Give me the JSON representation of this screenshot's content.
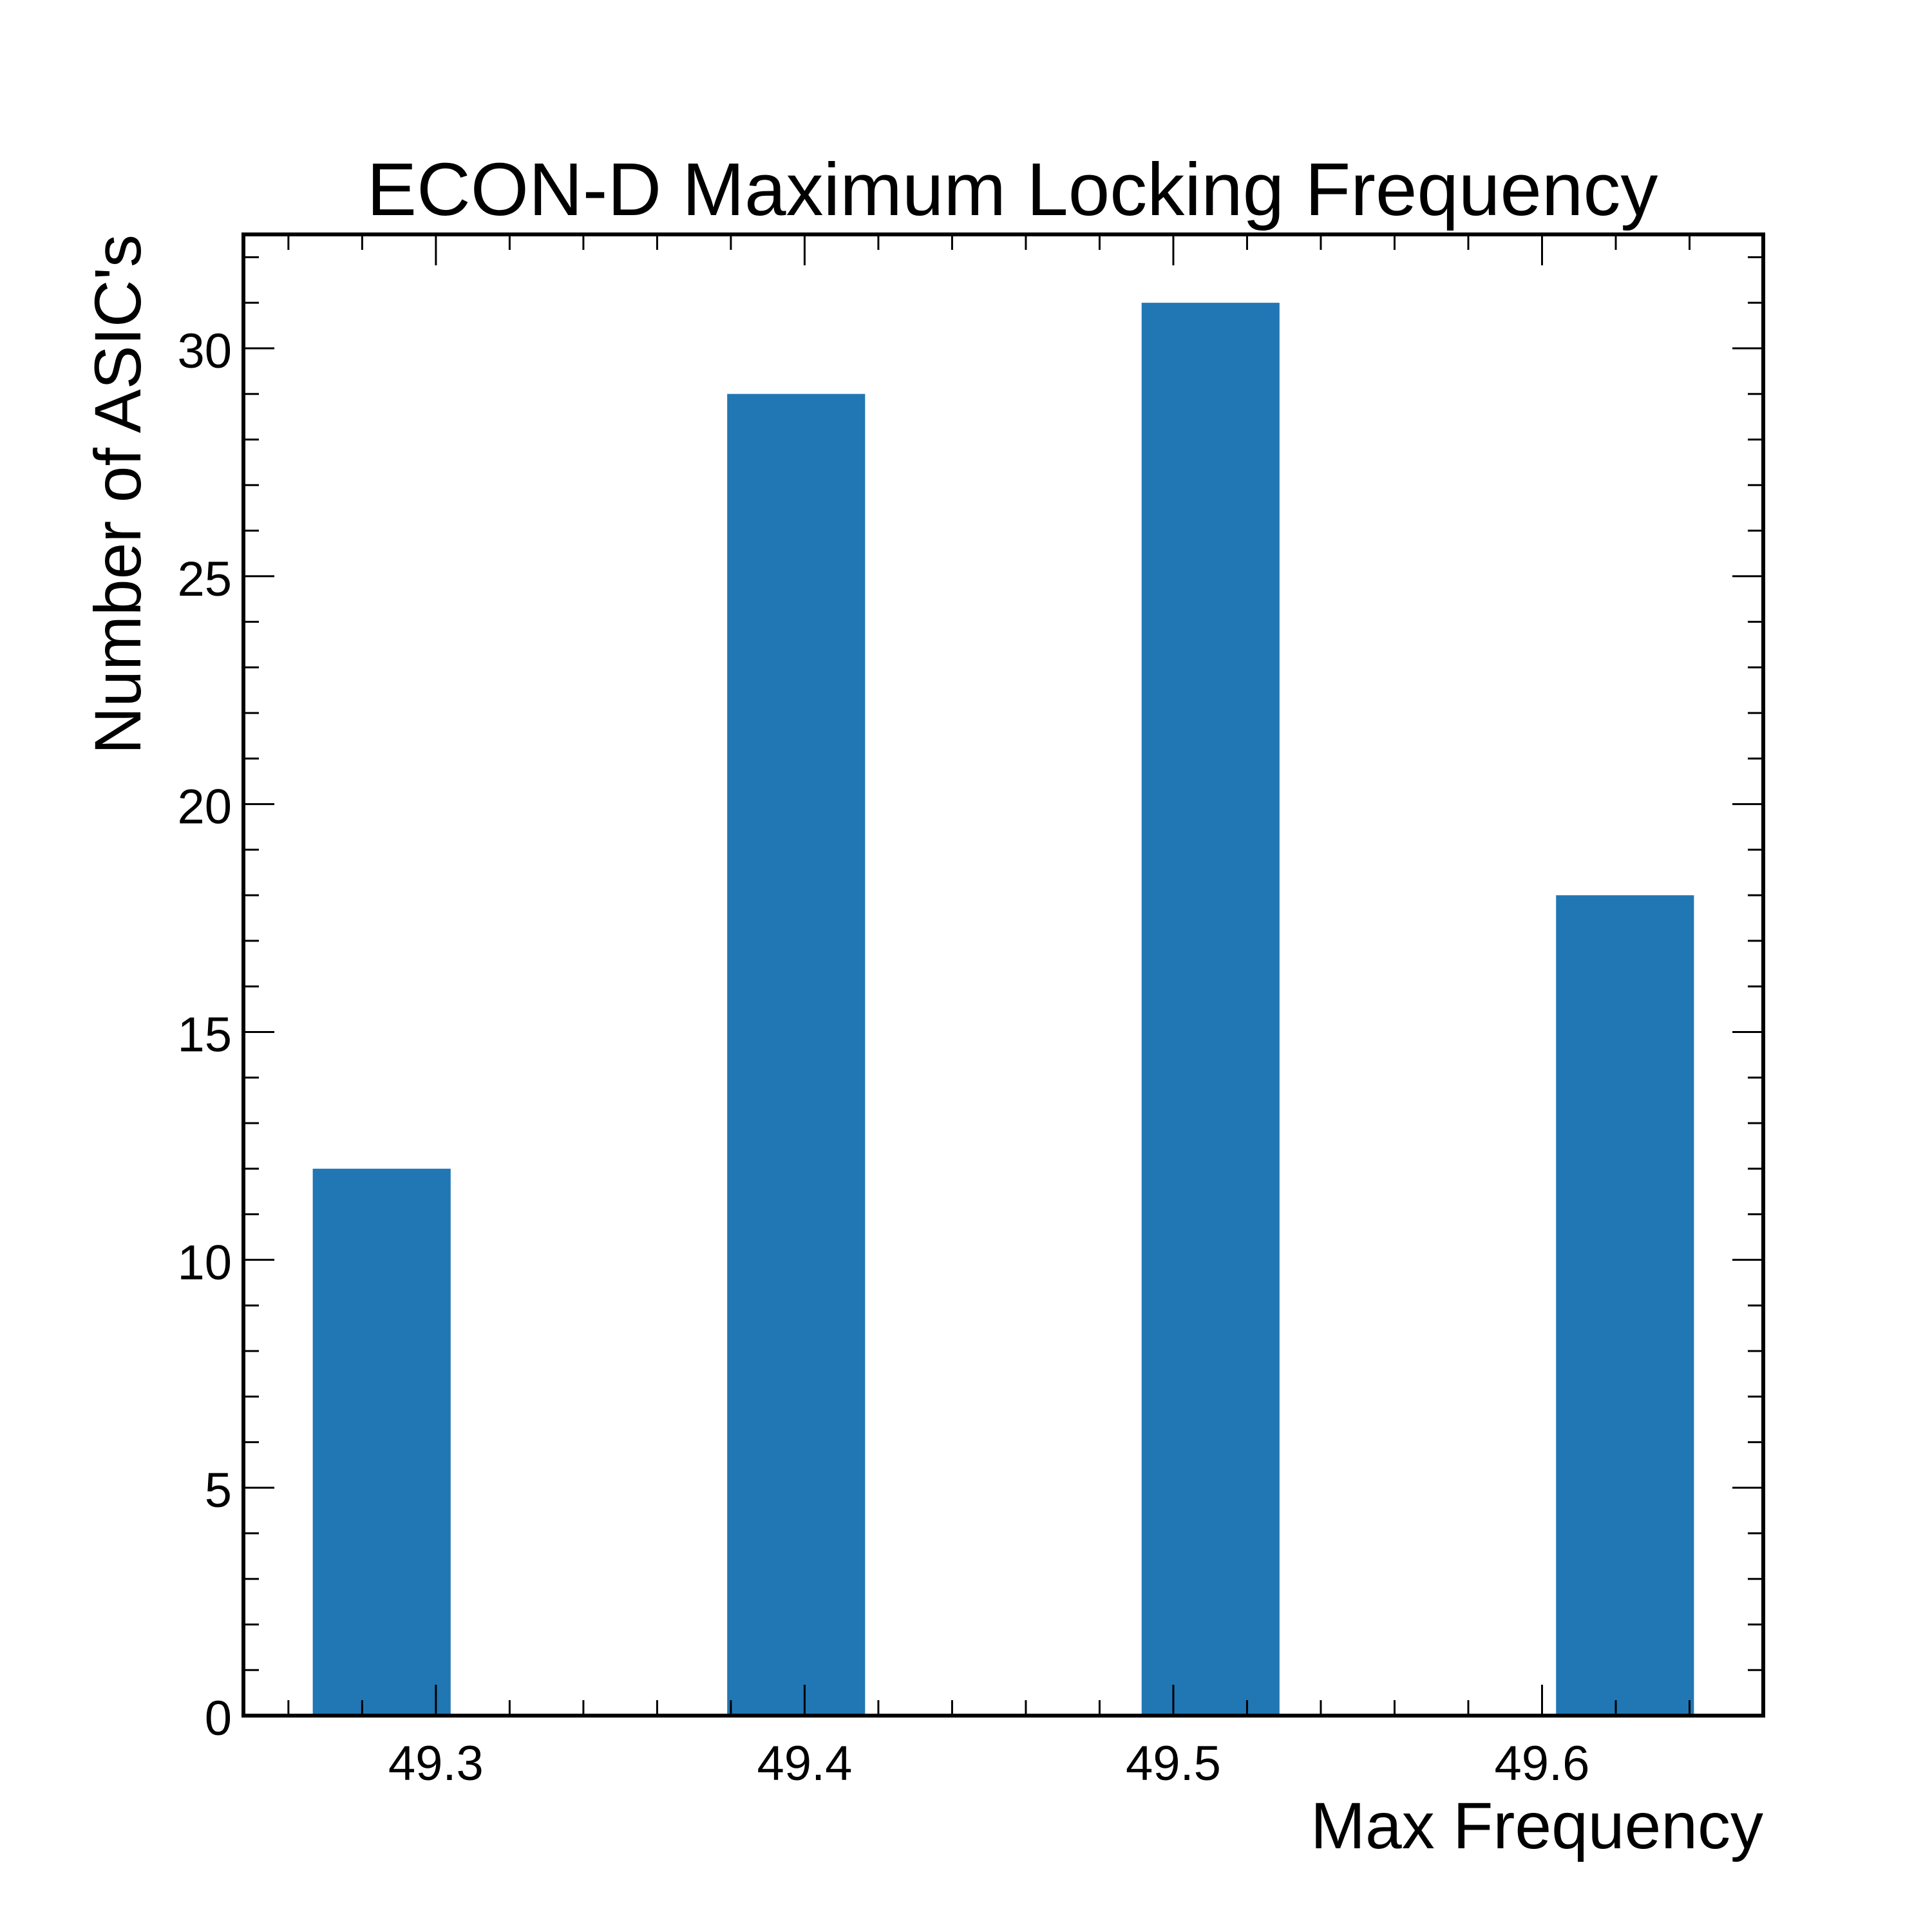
{
  "chart_data": {
    "type": "bar",
    "title": "ECON-D Maximum Locking Frequency",
    "xlabel": "Max Frequency",
    "ylabel": "Number of ASIC's",
    "bars": [
      {
        "x0": 49.2666,
        "x1": 49.304,
        "value": 12
      },
      {
        "x0": 49.379,
        "x1": 49.4164,
        "value": 29
      },
      {
        "x0": 49.4914,
        "x1": 49.5288,
        "value": 31
      },
      {
        "x0": 49.6038,
        "x1": 49.6412,
        "value": 18
      }
    ],
    "xlim": [
      49.2478,
      49.66
    ],
    "ylim": [
      0,
      32.5
    ],
    "x_ticks": [
      "49.3",
      "49.4",
      "49.5",
      "49.6"
    ],
    "y_ticks": [
      "0",
      "5",
      "10",
      "15",
      "20",
      "25",
      "30"
    ],
    "bar_color": "#2077b4",
    "grid": false,
    "legend": false
  }
}
